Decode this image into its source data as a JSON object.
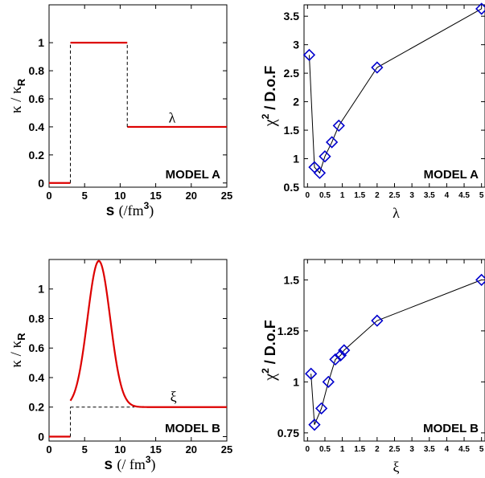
{
  "chart_data": [
    {
      "type": "line",
      "panel": "top-left",
      "model_label": "MODEL A",
      "curve_label": "λ",
      "xlabel_main": "s",
      "xlabel_unit": "(/fm",
      "xlabel_unit_sup": "3",
      "xlabel_unit_close": ")",
      "ylabel_main": "κ / κ",
      "ylabel_sub": "R",
      "xlim": [
        0,
        25
      ],
      "ylim": [
        -0.03,
        1.27
      ],
      "xticks": [
        0,
        5,
        10,
        15,
        20,
        25
      ],
      "xtick_labels": [
        "0",
        "5",
        "10",
        "15",
        "20",
        "25"
      ],
      "yticks": [
        0,
        0.2,
        0.4,
        0.6,
        0.8,
        1
      ],
      "ytick_labels": [
        "0",
        "0.2",
        "0.4",
        "0.6",
        "0.8",
        "1"
      ],
      "series": [
        {
          "style": "solid",
          "color": "#dd0000",
          "segments": [
            [
              [
                0,
                0
              ],
              [
                3,
                0
              ]
            ],
            [
              [
                3,
                1
              ],
              [
                11,
                1
              ]
            ],
            [
              [
                11,
                0.4
              ],
              [
                25,
                0.4
              ]
            ]
          ]
        },
        {
          "style": "dashed",
          "color": "#000000",
          "segments": [
            [
              [
                3,
                0
              ],
              [
                3,
                1
              ]
            ],
            [
              [
                11,
                0.4
              ],
              [
                11,
                1
              ]
            ]
          ]
        }
      ]
    },
    {
      "type": "line",
      "panel": "top-right",
      "model_label": "MODEL A",
      "xlabel": "λ",
      "ylabel_main": "χ",
      "ylabel_sup": "2",
      "ylabel_rest": " / D.o.F",
      "xlim": [
        -0.1,
        5.1
      ],
      "ylim": [
        0.5,
        3.7
      ],
      "xticks": [
        0,
        0.5,
        1,
        1.5,
        2,
        2.5,
        3,
        3.5,
        4,
        4.5,
        5
      ],
      "xtick_labels": [
        "0",
        "0.5",
        "1",
        "1.5",
        "2",
        "2.5",
        "3",
        "3.5",
        "4",
        "4.5",
        "5"
      ],
      "yticks": [
        0.5,
        1,
        1.5,
        2,
        2.5,
        3,
        3.5
      ],
      "ytick_labels": [
        "0.5",
        "1",
        "1.5",
        "2",
        "2.5",
        "3",
        "3.5"
      ],
      "series": [
        {
          "marker": "diamond",
          "color": "#0000cc",
          "x": [
            0.05,
            0.2,
            0.35,
            0.5,
            0.7,
            0.9,
            2.0,
            5.0
          ],
          "y": [
            2.82,
            0.85,
            0.75,
            1.04,
            1.29,
            1.58,
            2.6,
            3.63
          ]
        }
      ]
    },
    {
      "type": "line",
      "panel": "bottom-left",
      "model_label": "MODEL B",
      "curve_label": "ξ",
      "xlabel_main": "s",
      "xlabel_unit": "/ fm",
      "xlabel_unit_sup": "3",
      "xlabel_unit_close": ")",
      "xlabel_open": "(",
      "ylabel_main": "κ / κ",
      "ylabel_sub": "R",
      "xlim": [
        0,
        25
      ],
      "ylim": [
        -0.03,
        1.2
      ],
      "xticks": [
        0,
        5,
        10,
        15,
        20,
        25
      ],
      "xtick_labels": [
        "0",
        "5",
        "10",
        "15",
        "20",
        "25"
      ],
      "yticks": [
        0,
        0.2,
        0.4,
        0.6,
        0.8,
        1
      ],
      "ytick_labels": [
        "0",
        "0.2",
        "0.4",
        "0.6",
        "0.8",
        "1"
      ],
      "curve": {
        "baseline": 0.2,
        "peak": 1.19,
        "center": 7.0,
        "width": 1.6,
        "start": 3,
        "end": 25
      },
      "series": [
        {
          "style": "solid",
          "color": "#dd0000",
          "segments": [
            [
              [
                0,
                0
              ],
              [
                3,
                0
              ]
            ]
          ]
        },
        {
          "style": "dashed",
          "color": "#000000",
          "segments": [
            [
              [
                3,
                0
              ],
              [
                3,
                0.2
              ]
            ],
            [
              [
                3,
                0.2
              ],
              [
                12,
                0.2
              ]
            ]
          ]
        }
      ]
    },
    {
      "type": "line",
      "panel": "bottom-right",
      "model_label": "MODEL B",
      "xlabel": "ξ",
      "ylabel_main": "χ",
      "ylabel_sup": "2",
      "ylabel_rest": " / D.o.F",
      "xlim": [
        -0.1,
        5.1
      ],
      "ylim": [
        0.71,
        1.6
      ],
      "xticks": [
        0,
        0.5,
        1,
        1.5,
        2,
        2.5,
        3,
        3.5,
        4,
        4.5,
        5
      ],
      "xtick_labels": [
        "0",
        "0.5",
        "1",
        "1.5",
        "2",
        "2.5",
        "3",
        "3.5",
        "4",
        "4.5",
        "5"
      ],
      "yticks": [
        0.75,
        1,
        1.25,
        1.5
      ],
      "ytick_labels": [
        "0.75",
        "1",
        "1.25",
        "1.5"
      ],
      "series": [
        {
          "marker": "diamond",
          "color": "#0000cc",
          "x": [
            0.1,
            0.2,
            0.4,
            0.6,
            0.8,
            0.95,
            1.05,
            2.0,
            5.0
          ],
          "y": [
            1.04,
            0.79,
            0.87,
            1.0,
            1.11,
            1.13,
            1.155,
            1.3,
            1.5
          ]
        }
      ]
    }
  ]
}
